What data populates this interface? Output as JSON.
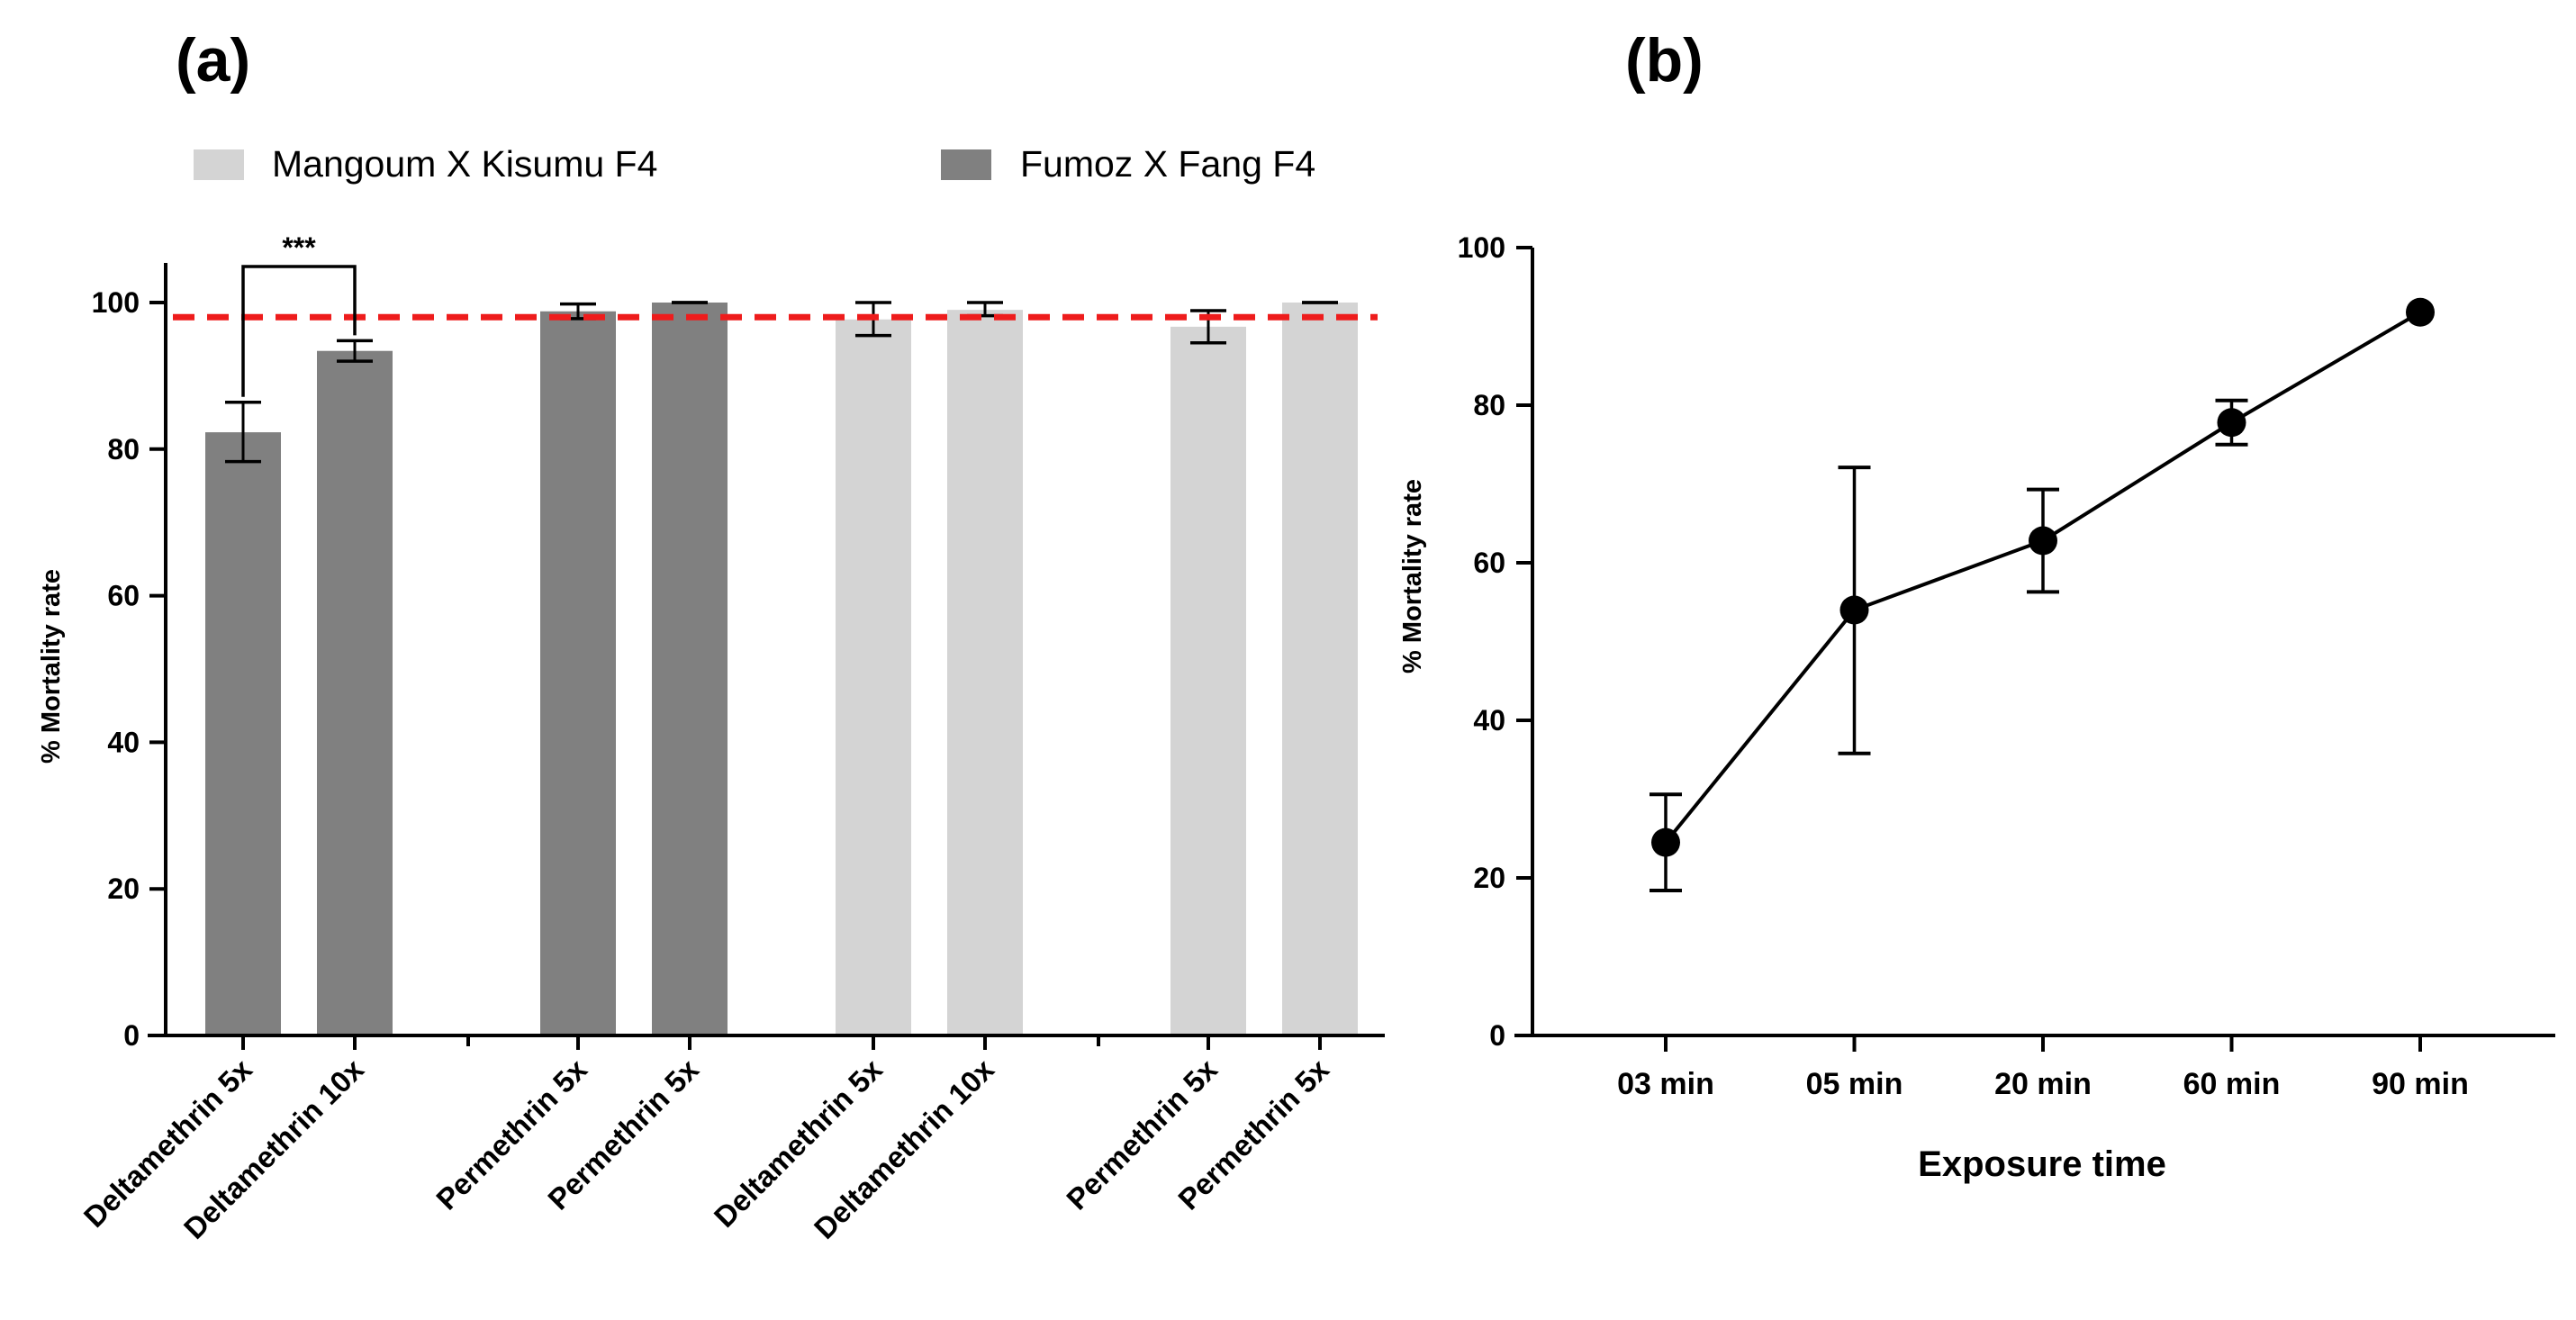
{
  "panel_labels": {
    "a": "(a)",
    "b": "(b)"
  },
  "chart_data": [
    {
      "type": "bar",
      "panel": "(a)",
      "title": "",
      "ylabel": "% Mortality rate",
      "xlabel": "",
      "ylim": [
        0,
        100
      ],
      "yticks": [
        0,
        20,
        40,
        60,
        80,
        100
      ],
      "legend": [
        {
          "name": "Mangoum X Kisumu F4",
          "color": "#d4d4d4"
        },
        {
          "name": "Fumoz X Fang F4",
          "color": "#808080"
        }
      ],
      "threshold": {
        "value": 98,
        "color": "#ee1c1c"
      },
      "significance": {
        "label": "***",
        "between": [
          0,
          1
        ]
      },
      "bars": [
        {
          "label": "Deltamethrin 5x",
          "value": 82.3,
          "err_low": 78.3,
          "err_high": 86.4,
          "color": "#808080"
        },
        {
          "label": "Deltamethrin 10x",
          "value": 93.4,
          "err_low": 92.0,
          "err_high": 94.8,
          "color": "#808080"
        },
        {
          "label": "Permethrin 5x",
          "value": 98.8,
          "err_low": 97.8,
          "err_high": 99.8,
          "color": "#808080"
        },
        {
          "label": "Permethrin 5x",
          "value": 100,
          "err_low": 100,
          "err_high": 100,
          "color": "#808080"
        },
        {
          "label": "Deltamethrin 5x",
          "value": 97.7,
          "err_low": 95.5,
          "err_high": 100,
          "color": "#d4d4d4"
        },
        {
          "label": "Deltamethrin 10x",
          "value": 99.0,
          "err_low": 98.2,
          "err_high": 100,
          "color": "#d4d4d4"
        },
        {
          "label": "Permethrin 5x",
          "value": 96.7,
          "err_low": 94.5,
          "err_high": 98.9,
          "color": "#d4d4d4"
        },
        {
          "label": "Permethrin 5x",
          "value": 100,
          "err_low": 100,
          "err_high": 100,
          "color": "#d4d4d4"
        }
      ]
    },
    {
      "type": "line",
      "panel": "(b)",
      "title": "",
      "xlabel": "Exposure time",
      "ylabel": "% Mortality rate",
      "ylim": [
        0,
        100
      ],
      "yticks": [
        0,
        20,
        40,
        60,
        80,
        100
      ],
      "categories": [
        "03 min",
        "05 min",
        "20 min",
        "60 min",
        "90 min"
      ],
      "values": [
        24.5,
        54.0,
        62.8,
        77.8,
        91.8
      ],
      "err_low": [
        18.4,
        35.8,
        56.3,
        75.0,
        91.8
      ],
      "err_high": [
        30.6,
        72.1,
        69.3,
        80.6,
        91.8
      ],
      "color": "#000000"
    }
  ]
}
